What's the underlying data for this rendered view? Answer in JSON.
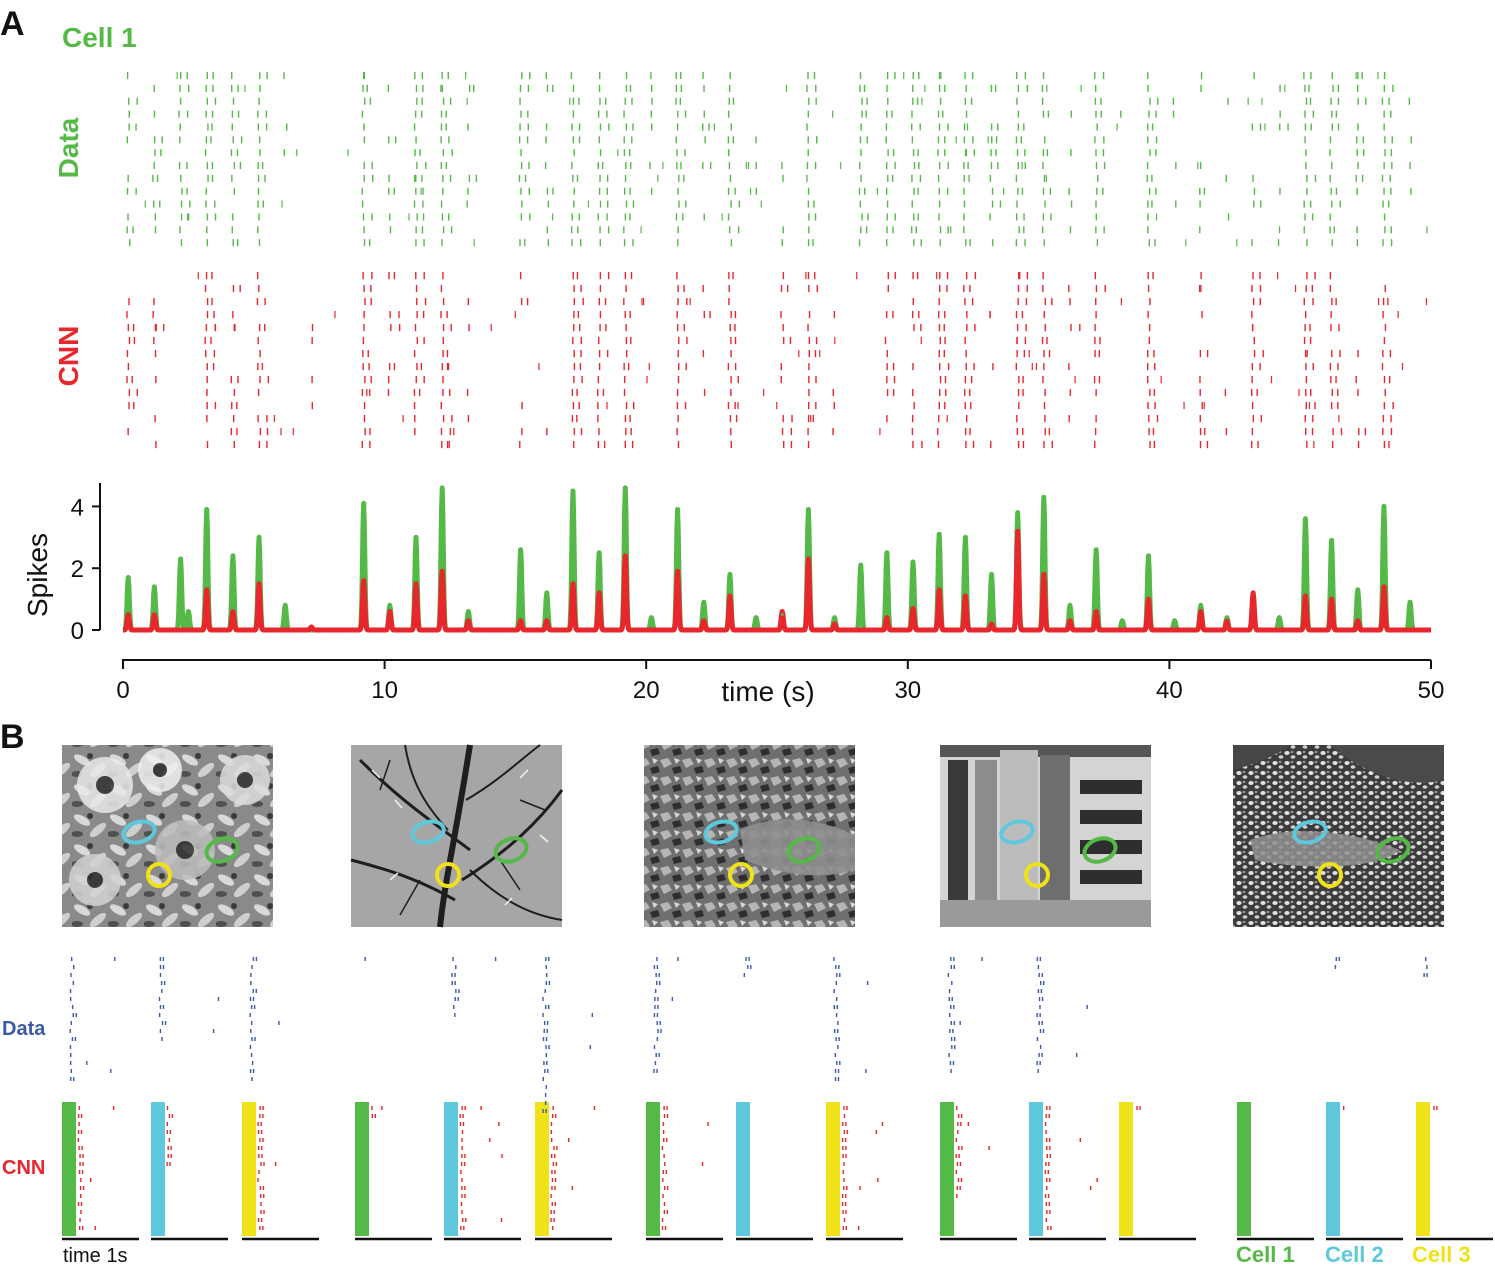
{
  "colors": {
    "data": "#55b947",
    "cnn": "#e8262d",
    "cell1": "#55b947",
    "cell2": "#5ec8dc",
    "cell3": "#f0e219",
    "data_b": "#3b59a8",
    "axis": "#111111"
  },
  "panel_a": {
    "letter": "A",
    "cell_title": "Cell 1",
    "data_row_label": "Data",
    "cnn_row_label": "CNN",
    "trial_count": 14
  },
  "panel_b": {
    "letter": "B",
    "data_row_label": "Data",
    "cnn_row_label": "CNN",
    "scale_label": "time 1s",
    "legend": [
      "Cell 1",
      "Cell 2",
      "Cell 3"
    ],
    "stimulus_count": 5,
    "stimuli": [
      "flowers",
      "tree-branches",
      "rocky-ground",
      "building",
      "pebbles"
    ]
  },
  "chart_data": {
    "type": "line",
    "xlabel": "time (s)",
    "ylabel": "Spikes",
    "xlim": [
      0,
      50
    ],
    "ylim": [
      0,
      4.5
    ],
    "xticks": [
      0,
      10,
      20,
      30,
      40,
      50
    ],
    "yticks": [
      0,
      2,
      4
    ],
    "grid": false,
    "series": [
      {
        "key": "data",
        "peaks": [
          [
            0.2,
            1.7
          ],
          [
            1.2,
            1.4
          ],
          [
            2.2,
            2.3
          ],
          [
            2.5,
            0.6
          ],
          [
            3.2,
            3.9
          ],
          [
            4.2,
            2.4
          ],
          [
            5.2,
            3.0
          ],
          [
            6.2,
            0.8
          ],
          [
            9.2,
            4.1
          ],
          [
            10.2,
            0.8
          ],
          [
            11.2,
            3.0
          ],
          [
            12.2,
            4.6
          ],
          [
            13.2,
            0.6
          ],
          [
            15.2,
            2.6
          ],
          [
            16.2,
            1.2
          ],
          [
            17.2,
            4.5
          ],
          [
            18.2,
            2.5
          ],
          [
            19.2,
            4.6
          ],
          [
            20.2,
            0.4
          ],
          [
            21.2,
            3.9
          ],
          [
            22.2,
            0.9
          ],
          [
            23.2,
            1.8
          ],
          [
            24.2,
            0.4
          ],
          [
            25.2,
            0.5
          ],
          [
            26.2,
            3.9
          ],
          [
            27.2,
            0.4
          ],
          [
            28.2,
            2.1
          ],
          [
            29.2,
            2.5
          ],
          [
            30.2,
            2.2
          ],
          [
            31.2,
            3.1
          ],
          [
            32.2,
            3.0
          ],
          [
            33.2,
            1.8
          ],
          [
            34.2,
            3.8
          ],
          [
            35.2,
            4.3
          ],
          [
            36.2,
            0.8
          ],
          [
            37.2,
            2.6
          ],
          [
            38.2,
            0.3
          ],
          [
            39.2,
            2.4
          ],
          [
            40.2,
            0.3
          ],
          [
            41.2,
            0.8
          ],
          [
            42.2,
            0.4
          ],
          [
            43.2,
            1.2
          ],
          [
            44.2,
            0.4
          ],
          [
            45.2,
            3.6
          ],
          [
            46.2,
            2.9
          ],
          [
            47.2,
            1.3
          ],
          [
            48.2,
            4.0
          ],
          [
            49.2,
            0.9
          ]
        ]
      },
      {
        "key": "cnn",
        "peaks": [
          [
            0.2,
            0.5
          ],
          [
            1.2,
            0.5
          ],
          [
            3.2,
            1.3
          ],
          [
            4.2,
            0.6
          ],
          [
            5.2,
            1.5
          ],
          [
            7.2,
            0.1
          ],
          [
            9.2,
            1.6
          ],
          [
            10.2,
            0.6
          ],
          [
            11.2,
            1.5
          ],
          [
            12.2,
            1.9
          ],
          [
            13.2,
            0.3
          ],
          [
            15.2,
            0.3
          ],
          [
            16.2,
            0.3
          ],
          [
            17.2,
            1.5
          ],
          [
            18.2,
            1.2
          ],
          [
            19.2,
            2.4
          ],
          [
            21.2,
            1.9
          ],
          [
            22.2,
            0.3
          ],
          [
            23.2,
            1.1
          ],
          [
            25.2,
            0.6
          ],
          [
            26.2,
            2.3
          ],
          [
            27.2,
            0.2
          ],
          [
            29.2,
            0.4
          ],
          [
            30.2,
            0.7
          ],
          [
            31.2,
            1.3
          ],
          [
            32.2,
            1.1
          ],
          [
            33.2,
            0.2
          ],
          [
            34.2,
            3.2
          ],
          [
            35.2,
            1.8
          ],
          [
            36.2,
            0.3
          ],
          [
            37.2,
            0.6
          ],
          [
            39.2,
            1.0
          ],
          [
            41.2,
            0.6
          ],
          [
            42.2,
            0.3
          ],
          [
            43.2,
            1.2
          ],
          [
            45.2,
            1.1
          ],
          [
            46.2,
            1.0
          ],
          [
            47.2,
            0.3
          ],
          [
            48.2,
            1.4
          ]
        ]
      }
    ]
  }
}
